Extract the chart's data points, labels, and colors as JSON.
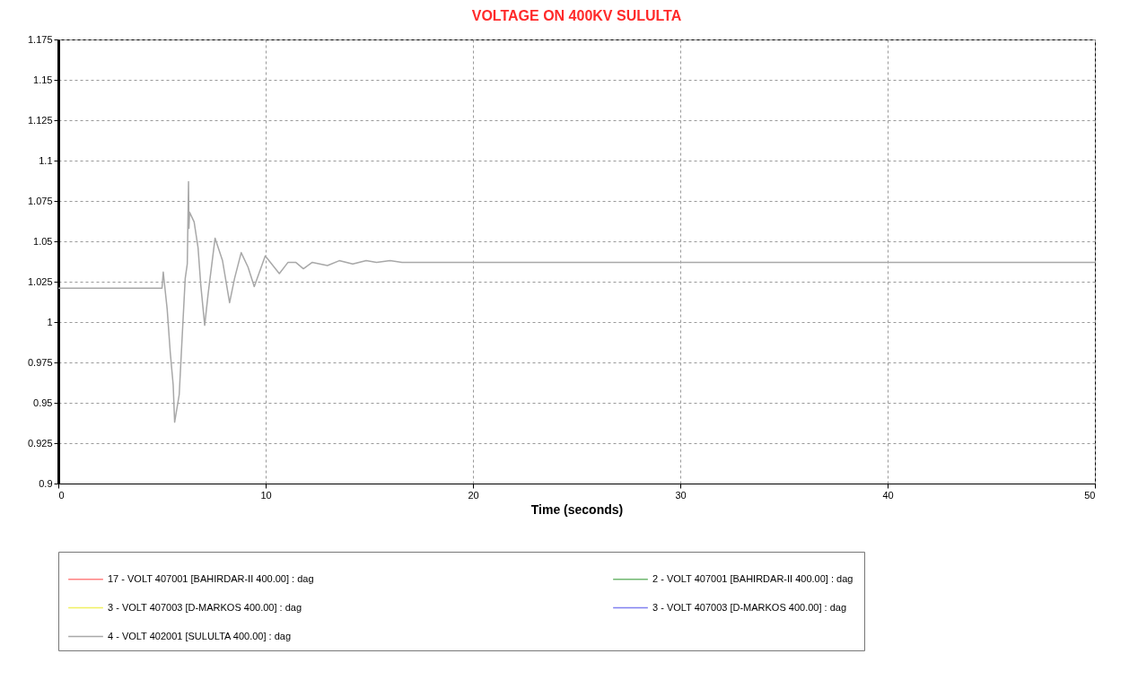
{
  "chart_data": {
    "type": "line",
    "title": "VOLTAGE ON 400KV SULULTA",
    "xlabel": "Time (seconds)",
    "xlim": [
      0,
      50
    ],
    "xticks": [
      0,
      10,
      20,
      30,
      40,
      50
    ],
    "ylim": [
      0.9,
      1.175
    ],
    "yticks": [
      0.9,
      0.925,
      0.95,
      0.975,
      1,
      1.025,
      1.05,
      1.075,
      1.1,
      1.125,
      1.15,
      1.175
    ],
    "grid": true,
    "legend": "bottom",
    "line_style": "solid",
    "marker": "none",
    "series": [
      {
        "name": "17 - VOLT 407001 [BAHIRDAR-II 400.00] : dag",
        "color": "#ff8080"
      },
      {
        "name": "2 - VOLT 407001 [BAHIRDAR-II 400.00] : dag",
        "color": "#70b870"
      },
      {
        "name": "3 - VOLT 407003 [D-MARKOS    400.00] : dag",
        "color": "#f0f060"
      },
      {
        "name": "3 - VOLT 407003 [D-MARKOS    400.00] : dag",
        "color": "#8080f0"
      },
      {
        "name": "4 - VOLT 402001 [SULULTA    400.00] : dag",
        "color": "#a8a8a8",
        "x": [
          0,
          5.0,
          5.06,
          5.15,
          5.25,
          5.4,
          5.54,
          5.61,
          5.83,
          5.97,
          6.12,
          6.22,
          6.28,
          6.3,
          6.33,
          6.55,
          6.74,
          6.87,
          7.06,
          7.23,
          7.56,
          7.92,
          8.26,
          8.5,
          8.82,
          9.15,
          9.45,
          9.98,
          10.66,
          11.08,
          11.45,
          11.82,
          12.25,
          12.98,
          13.55,
          14.2,
          14.85,
          15.35,
          16.0,
          16.58,
          17.2,
          50
        ],
        "values": [
          1.021,
          1.021,
          1.031,
          1.02,
          1.008,
          0.981,
          0.961,
          0.938,
          0.955,
          0.99,
          1.027,
          1.036,
          1.087,
          1.058,
          1.068,
          1.062,
          1.046,
          1.023,
          0.998,
          1.018,
          1.052,
          1.038,
          1.012,
          1.027,
          1.043,
          1.034,
          1.022,
          1.041,
          1.03,
          1.037,
          1.037,
          1.033,
          1.037,
          1.035,
          1.038,
          1.036,
          1.038,
          1.037,
          1.038,
          1.037,
          1.037,
          1.037
        ]
      }
    ]
  }
}
